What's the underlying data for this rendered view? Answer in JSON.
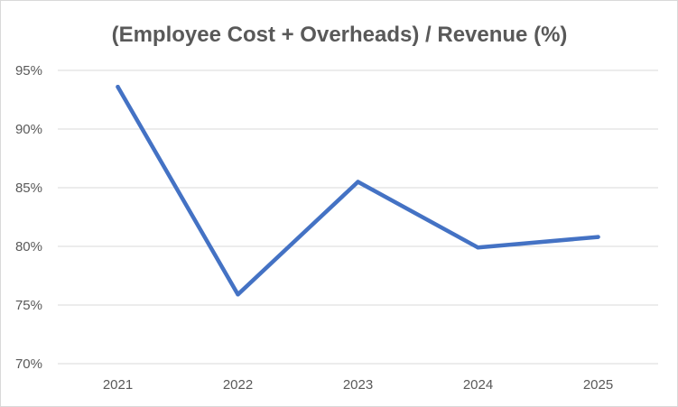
{
  "chart_data": {
    "type": "line",
    "title": "(Employee Cost + Overheads) / Revenue (%)",
    "xlabel": "",
    "ylabel": "",
    "categories": [
      "2021",
      "2022",
      "2023",
      "2024",
      "2025"
    ],
    "series": [
      {
        "name": "(Employee Cost + Overheads) / Revenue (%)",
        "values": [
          93.6,
          75.9,
          85.5,
          79.9,
          80.8
        ],
        "color": "#4472c4"
      }
    ],
    "ylim": [
      70,
      95
    ],
    "yticks": [
      70,
      75,
      80,
      85,
      90,
      95
    ],
    "ytick_labels": [
      "70%",
      "75%",
      "80%",
      "85%",
      "90%",
      "95%"
    ],
    "grid": true,
    "legend": "none"
  }
}
